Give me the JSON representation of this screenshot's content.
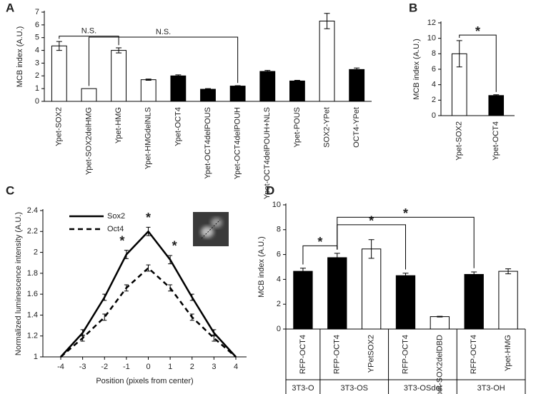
{
  "chart_data": [
    {
      "type": "bar",
      "panel": "A",
      "ylabel": "MCB index (A.U.)",
      "categories": [
        "Ypet-SOX2",
        "Ypet-SOX2delHMG",
        "Ypet-HMG",
        "Ypet-HMGdelNLS",
        "Ypet-OCT4",
        "Ypet-OCT4delPOUS",
        "Ypet-OCT4delPOUH",
        "Ypet-OCT4delPOUH+NLS",
        "Ypet-POUS",
        "SOX2-YPet",
        "OCT4-YPet"
      ],
      "values": [
        4.35,
        1.0,
        4.0,
        1.7,
        2.0,
        0.95,
        1.2,
        2.35,
        1.6,
        6.3,
        2.5
      ],
      "errors": [
        0.35,
        0,
        0.2,
        0.05,
        0.08,
        0.05,
        0.03,
        0.08,
        0.05,
        0.6,
        0.12
      ],
      "colors": [
        "#ffffff",
        "#ffffff",
        "#ffffff",
        "#ffffff",
        "#000000",
        "#000000",
        "#000000",
        "#000000",
        "#000000",
        "#ffffff",
        "#000000"
      ],
      "ylim": [
        0,
        7
      ],
      "yticks": [
        0,
        1,
        2,
        3,
        4,
        5,
        6,
        7
      ],
      "brackets": [
        {
          "label": "N.S.",
          "between": [
            0,
            2
          ]
        },
        {
          "label": "N.S.",
          "between": [
            1,
            6
          ]
        }
      ]
    },
    {
      "type": "bar",
      "panel": "B",
      "ylabel": "MCB index (A.U.)",
      "categories": [
        "Ypet-SOX2",
        "Ypet-OCT4"
      ],
      "values": [
        8.0,
        2.6
      ],
      "errors": [
        1.7,
        0.1
      ],
      "colors": [
        "#ffffff",
        "#000000"
      ],
      "ylim": [
        0,
        12
      ],
      "yticks": [
        0,
        2,
        4,
        6,
        8,
        10,
        12
      ],
      "brackets": [
        {
          "label": "*",
          "between": [
            0,
            1
          ]
        }
      ]
    },
    {
      "type": "line",
      "panel": "C",
      "xlabel": "Position (pixels from center)",
      "ylabel": "Normalized luminescence intensity (A.U.)",
      "x": [
        -4,
        -3,
        -2,
        -1,
        0,
        1,
        2,
        3,
        4
      ],
      "xlim": [
        -4,
        4
      ],
      "xticks": [
        -4,
        -3,
        -2,
        -1,
        0,
        1,
        2,
        3,
        4
      ],
      "ylim": [
        1,
        2.4
      ],
      "yticks": [
        1,
        1.2,
        1.4,
        1.6,
        1.8,
        2,
        2.2,
        2.4
      ],
      "series": [
        {
          "name": "Sox2",
          "color": "#000000",
          "dashed": false,
          "values": [
            1.0,
            1.23,
            1.57,
            1.98,
            2.2,
            1.93,
            1.57,
            1.23,
            1.0
          ],
          "errors": [
            0,
            0.03,
            0.03,
            0.04,
            0.04,
            0.04,
            0.03,
            0.03,
            0
          ]
        },
        {
          "name": "Oct4",
          "color": "#000000",
          "dashed": true,
          "values": [
            1.0,
            1.18,
            1.38,
            1.66,
            1.85,
            1.66,
            1.38,
            1.18,
            1.0
          ],
          "errors": [
            0,
            0.03,
            0.03,
            0.03,
            0.03,
            0.03,
            0.03,
            0.03,
            0
          ]
        }
      ],
      "annotations": [
        {
          "label": "*",
          "x": -1
        },
        {
          "label": "*",
          "x": 0
        },
        {
          "label": "*",
          "x": 1
        }
      ]
    },
    {
      "type": "bar",
      "panel": "D",
      "ylabel": "MCB index (A.U.)",
      "categories": [
        "RFP-OCT4",
        "RFP-OCT4",
        "YPetSOX2",
        "RFP-OCT4",
        "Ypet-SOX2delDBD",
        "RFP-OCT4",
        "Ypet-HMG"
      ],
      "values": [
        4.65,
        5.75,
        6.45,
        4.3,
        1.0,
        4.4,
        4.65
      ],
      "errors": [
        0.25,
        0.35,
        0.75,
        0.2,
        0.03,
        0.2,
        0.2
      ],
      "colors": [
        "#000000",
        "#000000",
        "#ffffff",
        "#000000",
        "#ffffff",
        "#000000",
        "#ffffff"
      ],
      "ylim": [
        0,
        10
      ],
      "yticks": [
        0,
        2,
        4,
        6,
        8,
        10
      ],
      "groups": [
        {
          "label": "3T3-O",
          "size": 1
        },
        {
          "label": "3T3-OS",
          "size": 2
        },
        {
          "label": "3T3-OSdel",
          "size": 2
        },
        {
          "label": "3T3-OH",
          "size": 2
        }
      ],
      "brackets": [
        {
          "label": "*",
          "between": [
            0,
            1
          ]
        },
        {
          "label": "*",
          "between": [
            1,
            3
          ]
        },
        {
          "label": "*",
          "between": [
            1,
            5
          ]
        }
      ]
    }
  ]
}
